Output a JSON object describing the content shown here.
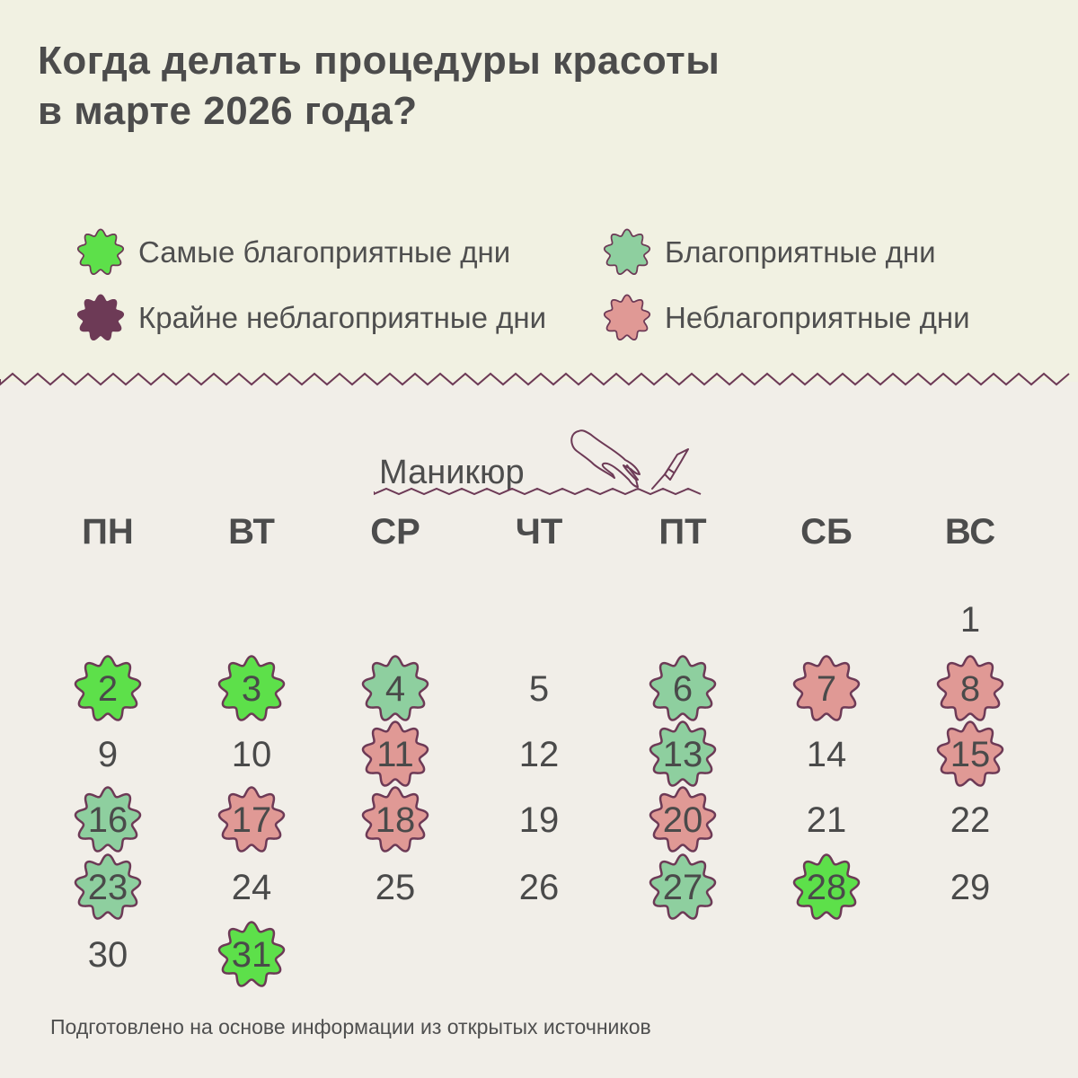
{
  "title": {
    "line1": "Когда делать процедуры красоты",
    "line2": "в марте 2026 года?"
  },
  "legend": [
    {
      "label": "Самые благоприятные дни",
      "color": "#5de04a"
    },
    {
      "label": "Благоприятные дни",
      "color": "#8ecf9f"
    },
    {
      "label": "Крайне неблагоприятные дни",
      "color": "#6d3a56"
    },
    {
      "label": "Неблагоприятные дни",
      "color": "#e09995"
    }
  ],
  "section": {
    "title": "Маникюр",
    "icon": "hand-nail-polish-icon"
  },
  "weekdays": [
    "ПН",
    "ВТ",
    "СР",
    "ЧТ",
    "ПТ",
    "СБ",
    "ВС"
  ],
  "days": [
    {
      "d": "1",
      "col": 6,
      "row": 0,
      "type": "none"
    },
    {
      "d": "2",
      "col": 0,
      "row": 1,
      "type": "best"
    },
    {
      "d": "3",
      "col": 1,
      "row": 1,
      "type": "best"
    },
    {
      "d": "4",
      "col": 2,
      "row": 1,
      "type": "good"
    },
    {
      "d": "5",
      "col": 3,
      "row": 1,
      "type": "none"
    },
    {
      "d": "6",
      "col": 4,
      "row": 1,
      "type": "good"
    },
    {
      "d": "7",
      "col": 5,
      "row": 1,
      "type": "bad"
    },
    {
      "d": "8",
      "col": 6,
      "row": 1,
      "type": "bad"
    },
    {
      "d": "9",
      "col": 0,
      "row": 2,
      "type": "none"
    },
    {
      "d": "10",
      "col": 1,
      "row": 2,
      "type": "none"
    },
    {
      "d": "11",
      "col": 2,
      "row": 2,
      "type": "bad"
    },
    {
      "d": "12",
      "col": 3,
      "row": 2,
      "type": "none"
    },
    {
      "d": "13",
      "col": 4,
      "row": 2,
      "type": "good"
    },
    {
      "d": "14",
      "col": 5,
      "row": 2,
      "type": "none"
    },
    {
      "d": "15",
      "col": 6,
      "row": 2,
      "type": "bad"
    },
    {
      "d": "16",
      "col": 0,
      "row": 3,
      "type": "good"
    },
    {
      "d": "17",
      "col": 1,
      "row": 3,
      "type": "bad"
    },
    {
      "d": "18",
      "col": 2,
      "row": 3,
      "type": "bad"
    },
    {
      "d": "19",
      "col": 3,
      "row": 3,
      "type": "none"
    },
    {
      "d": "20",
      "col": 4,
      "row": 3,
      "type": "bad"
    },
    {
      "d": "21",
      "col": 5,
      "row": 3,
      "type": "none"
    },
    {
      "d": "22",
      "col": 6,
      "row": 3,
      "type": "none"
    },
    {
      "d": "23",
      "col": 0,
      "row": 4,
      "type": "good"
    },
    {
      "d": "24",
      "col": 1,
      "row": 4,
      "type": "none"
    },
    {
      "d": "25",
      "col": 2,
      "row": 4,
      "type": "none"
    },
    {
      "d": "26",
      "col": 3,
      "row": 4,
      "type": "none"
    },
    {
      "d": "27",
      "col": 4,
      "row": 4,
      "type": "good"
    },
    {
      "d": "28",
      "col": 5,
      "row": 4,
      "type": "best"
    },
    {
      "d": "29",
      "col": 6,
      "row": 4,
      "type": "none"
    },
    {
      "d": "30",
      "col": 0,
      "row": 5,
      "type": "none"
    },
    {
      "d": "31",
      "col": 1,
      "row": 5,
      "type": "best"
    }
  ],
  "colors": {
    "best": "#5de04a",
    "good": "#8ecf9f",
    "bad": "#e09995",
    "worst": "#6d3a56",
    "outline": "#6d3a56"
  },
  "footer": "Подготовлено на основе информации из открытых источников"
}
